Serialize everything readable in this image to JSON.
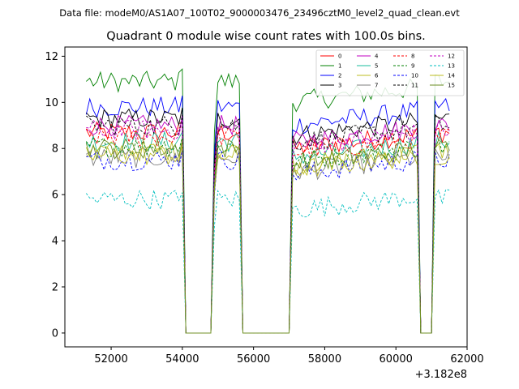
{
  "suptitle": "Data file: modeM0/AS1A07_100T02_9000003476_23496cztM0_level2_quad_clean.evt",
  "chart_data": {
    "type": "line",
    "title": "Quadrant 0 module wise count rates with 100.0s bins.",
    "xlabel": "",
    "ylabel": "",
    "x_offset_label": "+3.182e8",
    "xlim": [
      50700,
      62000
    ],
    "ylim": [
      -0.6,
      12.4
    ],
    "xticks": [
      52000,
      54000,
      56000,
      58000,
      60000,
      62000
    ],
    "xtick_labels": [
      "52000",
      "54000",
      "56000",
      "58000",
      "60000",
      "62000"
    ],
    "yticks": [
      0,
      2,
      4,
      6,
      8,
      10,
      12
    ],
    "ytick_labels": [
      "0",
      "2",
      "4",
      "6",
      "8",
      "10",
      "12"
    ],
    "legend_location": "upper-right",
    "segments": [
      [
        51300,
        54000
      ],
      [
        54900,
        55600
      ],
      [
        57100,
        60650
      ],
      [
        61100,
        61500
      ]
    ],
    "series": [
      {
        "name": "0",
        "color": "#ff0000",
        "dash": "solid",
        "level": 8.7
      },
      {
        "name": "1",
        "color": "#008000",
        "dash": "solid",
        "level": 10.9
      },
      {
        "name": "2",
        "color": "#0000ff",
        "dash": "solid",
        "level": 9.8
      },
      {
        "name": "3",
        "color": "#000000",
        "dash": "solid",
        "level": 9.3
      },
      {
        "name": "4",
        "color": "#c000c0",
        "dash": "solid",
        "level": 9.0
      },
      {
        "name": "5",
        "color": "#1abc9c",
        "dash": "solid",
        "level": 8.3
      },
      {
        "name": "6",
        "color": "#bcbd22",
        "dash": "solid",
        "level": 7.9
      },
      {
        "name": "7",
        "color": "#7f7f7f",
        "dash": "solid",
        "level": 7.6
      },
      {
        "name": "8",
        "color": "#ff0000",
        "dash": "dashed",
        "level": 8.5
      },
      {
        "name": "9",
        "color": "#008000",
        "dash": "dashed",
        "level": 8.1
      },
      {
        "name": "10",
        "color": "#0000ff",
        "dash": "dashed",
        "level": 7.5
      },
      {
        "name": "11",
        "color": "#000000",
        "dash": "dashed",
        "level": 9.0
      },
      {
        "name": "12",
        "color": "#c000c0",
        "dash": "dashed",
        "level": 8.8
      },
      {
        "name": "13",
        "color": "#00bfbf",
        "dash": "dashed",
        "level": 5.8
      },
      {
        "name": "14",
        "color": "#bcbd22",
        "dash": "solid",
        "level": 7.7
      },
      {
        "name": "15",
        "color": "#6b8e23",
        "dash": "solid",
        "level": 8.0
      }
    ]
  }
}
